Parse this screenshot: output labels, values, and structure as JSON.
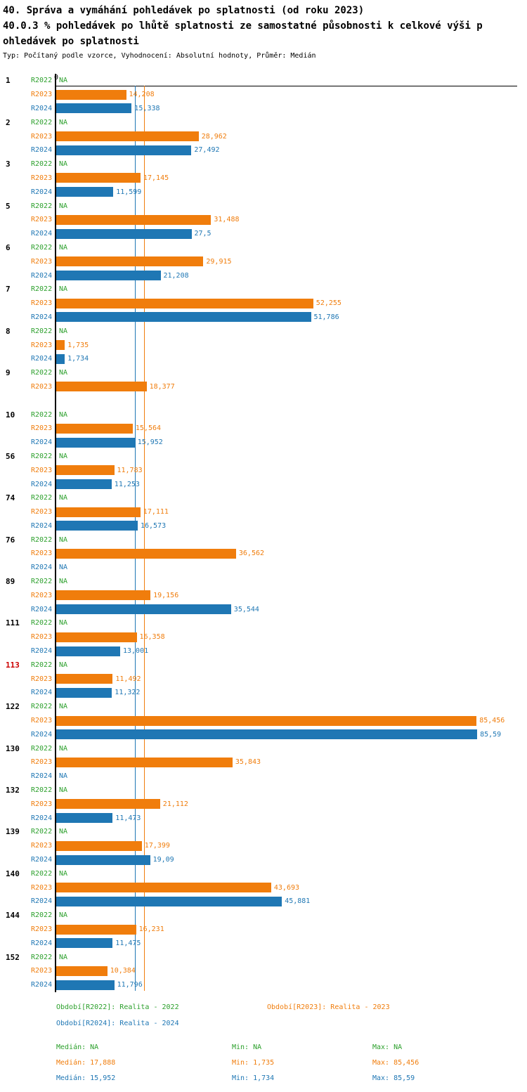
{
  "title": {
    "line1": "40. Správa a vymáhání pohledávek po splatnosti (od roku 2023)",
    "line2": "40.0.3 % pohledávek po lhůtě splatnosti ze samostatné působnosti k celkové výši p",
    "line3": "ohledávek po splatnosti",
    "meta": "Typ: Počítaný podle vzorce, Vyhodnocení: Absolutní hodnoty, Průměr: Medián"
  },
  "axis": {
    "zero_label": "0",
    "xlim": [
      0,
      93.6
    ]
  },
  "colors": {
    "r2022": "#2ca02c",
    "r2023": "#f07d0c",
    "r2024": "#1f77b4",
    "highlight": "#cc0000"
  },
  "chart_data": {
    "type": "bar",
    "orientation": "horizontal",
    "unit": "%",
    "series": [
      "R2022",
      "R2023",
      "R2024"
    ],
    "medians": {
      "r2023": 17.888,
      "r2024": 15.952
    },
    "groups": [
      {
        "id": "1",
        "highlight": false,
        "rows": [
          {
            "year": "R2022",
            "series": "r2022",
            "value": null,
            "text": "NA"
          },
          {
            "year": "R2023",
            "series": "r2023",
            "value": 14.208,
            "text": "14,208"
          },
          {
            "year": "R2024",
            "series": "r2024",
            "value": 15.338,
            "text": "15,338"
          }
        ]
      },
      {
        "id": "2",
        "highlight": false,
        "rows": [
          {
            "year": "R2022",
            "series": "r2022",
            "value": null,
            "text": "NA"
          },
          {
            "year": "R2023",
            "series": "r2023",
            "value": 28.962,
            "text": "28,962"
          },
          {
            "year": "R2024",
            "series": "r2024",
            "value": 27.492,
            "text": "27,492"
          }
        ]
      },
      {
        "id": "3",
        "highlight": false,
        "rows": [
          {
            "year": "R2022",
            "series": "r2022",
            "value": null,
            "text": "NA"
          },
          {
            "year": "R2023",
            "series": "r2023",
            "value": 17.145,
            "text": "17,145"
          },
          {
            "year": "R2024",
            "series": "r2024",
            "value": 11.599,
            "text": "11,599"
          }
        ]
      },
      {
        "id": "5",
        "highlight": false,
        "rows": [
          {
            "year": "R2022",
            "series": "r2022",
            "value": null,
            "text": "NA"
          },
          {
            "year": "R2023",
            "series": "r2023",
            "value": 31.488,
            "text": "31,488"
          },
          {
            "year": "R2024",
            "series": "r2024",
            "value": 27.5,
            "text": "27,5"
          }
        ]
      },
      {
        "id": "6",
        "highlight": false,
        "rows": [
          {
            "year": "R2022",
            "series": "r2022",
            "value": null,
            "text": "NA"
          },
          {
            "year": "R2023",
            "series": "r2023",
            "value": 29.915,
            "text": "29,915"
          },
          {
            "year": "R2024",
            "series": "r2024",
            "value": 21.208,
            "text": "21,208"
          }
        ]
      },
      {
        "id": "7",
        "highlight": false,
        "rows": [
          {
            "year": "R2022",
            "series": "r2022",
            "value": null,
            "text": "NA"
          },
          {
            "year": "R2023",
            "series": "r2023",
            "value": 52.255,
            "text": "52,255"
          },
          {
            "year": "R2024",
            "series": "r2024",
            "value": 51.786,
            "text": "51,786"
          }
        ]
      },
      {
        "id": "8",
        "highlight": false,
        "rows": [
          {
            "year": "R2022",
            "series": "r2022",
            "value": null,
            "text": "NA"
          },
          {
            "year": "R2023",
            "series": "r2023",
            "value": 1.735,
            "text": "1,735"
          },
          {
            "year": "R2024",
            "series": "r2024",
            "value": 1.734,
            "text": "1,734"
          }
        ]
      },
      {
        "id": "9",
        "highlight": false,
        "rows": [
          {
            "year": "R2022",
            "series": "r2022",
            "value": null,
            "text": "NA"
          },
          {
            "year": "R2023",
            "series": "r2023",
            "value": 18.377,
            "text": "18,377"
          },
          {
            "year": "",
            "series": "r2024",
            "value": null,
            "text": ""
          }
        ]
      },
      {
        "id": "10",
        "highlight": false,
        "rows": [
          {
            "year": "R2022",
            "series": "r2022",
            "value": null,
            "text": "NA"
          },
          {
            "year": "R2023",
            "series": "r2023",
            "value": 15.564,
            "text": "15,564"
          },
          {
            "year": "R2024",
            "series": "r2024",
            "value": 15.952,
            "text": "15,952"
          }
        ]
      },
      {
        "id": "56",
        "highlight": false,
        "rows": [
          {
            "year": "R2022",
            "series": "r2022",
            "value": null,
            "text": "NA"
          },
          {
            "year": "R2023",
            "series": "r2023",
            "value": 11.783,
            "text": "11,783"
          },
          {
            "year": "R2024",
            "series": "r2024",
            "value": 11.253,
            "text": "11,253"
          }
        ]
      },
      {
        "id": "74",
        "highlight": false,
        "rows": [
          {
            "year": "R2022",
            "series": "r2022",
            "value": null,
            "text": "NA"
          },
          {
            "year": "R2023",
            "series": "r2023",
            "value": 17.111,
            "text": "17,111"
          },
          {
            "year": "R2024",
            "series": "r2024",
            "value": 16.573,
            "text": "16,573"
          }
        ]
      },
      {
        "id": "76",
        "highlight": false,
        "rows": [
          {
            "year": "R2022",
            "series": "r2022",
            "value": null,
            "text": "NA"
          },
          {
            "year": "R2023",
            "series": "r2023",
            "value": 36.562,
            "text": "36,562"
          },
          {
            "year": "R2024",
            "series": "r2024",
            "value": null,
            "text": "NA"
          }
        ]
      },
      {
        "id": "89",
        "highlight": false,
        "rows": [
          {
            "year": "R2022",
            "series": "r2022",
            "value": null,
            "text": "NA"
          },
          {
            "year": "R2023",
            "series": "r2023",
            "value": 19.156,
            "text": "19,156"
          },
          {
            "year": "R2024",
            "series": "r2024",
            "value": 35.544,
            "text": "35,544"
          }
        ]
      },
      {
        "id": "111",
        "highlight": false,
        "rows": [
          {
            "year": "R2022",
            "series": "r2022",
            "value": null,
            "text": "NA"
          },
          {
            "year": "R2023",
            "series": "r2023",
            "value": 16.358,
            "text": "16,358"
          },
          {
            "year": "R2024",
            "series": "r2024",
            "value": 13.001,
            "text": "13,001"
          }
        ]
      },
      {
        "id": "113",
        "highlight": true,
        "rows": [
          {
            "year": "R2022",
            "series": "r2022",
            "value": null,
            "text": "NA"
          },
          {
            "year": "R2023",
            "series": "r2023",
            "value": 11.492,
            "text": "11,492"
          },
          {
            "year": "R2024",
            "series": "r2024",
            "value": 11.322,
            "text": "11,322"
          }
        ]
      },
      {
        "id": "122",
        "highlight": false,
        "rows": [
          {
            "year": "R2022",
            "series": "r2022",
            "value": null,
            "text": "NA"
          },
          {
            "year": "R2023",
            "series": "r2023",
            "value": 85.456,
            "text": "85,456"
          },
          {
            "year": "R2024",
            "series": "r2024",
            "value": 85.59,
            "text": "85,59"
          }
        ]
      },
      {
        "id": "130",
        "highlight": false,
        "rows": [
          {
            "year": "R2022",
            "series": "r2022",
            "value": null,
            "text": "NA"
          },
          {
            "year": "R2023",
            "series": "r2023",
            "value": 35.843,
            "text": "35,843"
          },
          {
            "year": "R2024",
            "series": "r2024",
            "value": null,
            "text": "NA"
          }
        ]
      },
      {
        "id": "132",
        "highlight": false,
        "rows": [
          {
            "year": "R2022",
            "series": "r2022",
            "value": null,
            "text": "NA"
          },
          {
            "year": "R2023",
            "series": "r2023",
            "value": 21.112,
            "text": "21,112"
          },
          {
            "year": "R2024",
            "series": "r2024",
            "value": 11.473,
            "text": "11,473"
          }
        ]
      },
      {
        "id": "139",
        "highlight": false,
        "rows": [
          {
            "year": "R2022",
            "series": "r2022",
            "value": null,
            "text": "NA"
          },
          {
            "year": "R2023",
            "series": "r2023",
            "value": 17.399,
            "text": "17,399"
          },
          {
            "year": "R2024",
            "series": "r2024",
            "value": 19.09,
            "text": "19,09"
          }
        ]
      },
      {
        "id": "140",
        "highlight": false,
        "rows": [
          {
            "year": "R2022",
            "series": "r2022",
            "value": null,
            "text": "NA"
          },
          {
            "year": "R2023",
            "series": "r2023",
            "value": 43.693,
            "text": "43,693"
          },
          {
            "year": "R2024",
            "series": "r2024",
            "value": 45.881,
            "text": "45,881"
          }
        ]
      },
      {
        "id": "144",
        "highlight": false,
        "rows": [
          {
            "year": "R2022",
            "series": "r2022",
            "value": null,
            "text": "NA"
          },
          {
            "year": "R2023",
            "series": "r2023",
            "value": 16.231,
            "text": "16,231"
          },
          {
            "year": "R2024",
            "series": "r2024",
            "value": 11.475,
            "text": "11,475"
          }
        ]
      },
      {
        "id": "152",
        "highlight": false,
        "rows": [
          {
            "year": "R2022",
            "series": "r2022",
            "value": null,
            "text": "NA"
          },
          {
            "year": "R2023",
            "series": "r2023",
            "value": 10.384,
            "text": "10,384"
          },
          {
            "year": "R2024",
            "series": "r2024",
            "value": 11.796,
            "text": "11,796"
          }
        ]
      }
    ]
  },
  "legend": {
    "items": [
      {
        "series": "r2022",
        "label": "Období[R2022]: Realita - 2022"
      },
      {
        "series": "r2023",
        "label": "Období[R2023]: Realita - 2023"
      },
      {
        "series": "r2024",
        "label": "Období[R2024]: Realita - 2024"
      }
    ]
  },
  "stats": {
    "rows": [
      {
        "series": "r2022",
        "median": "Medián: NA",
        "min": "Min: NA",
        "max": "Max: NA"
      },
      {
        "series": "r2023",
        "median": "Medián: 17,888",
        "min": "Min: 1,735",
        "max": "Max: 85,456"
      },
      {
        "series": "r2024",
        "median": "Medián: 15,952",
        "min": "Min: 1,734",
        "max": "Max: 85,59"
      }
    ]
  }
}
